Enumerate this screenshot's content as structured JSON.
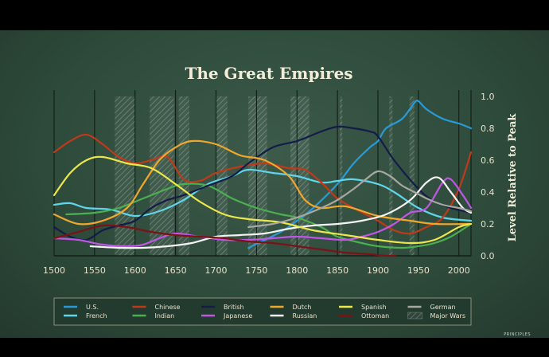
{
  "brand": "PRINCIPLES",
  "chart_data": {
    "type": "line",
    "title": "The Great Empires",
    "xlabel": "",
    "ylabel": "Level Relative to Peak",
    "xlim": [
      1500,
      2015
    ],
    "ylim": [
      0,
      1.0
    ],
    "x_ticks": [
      "1500",
      "1550",
      "1600",
      "1650",
      "1700",
      "1750",
      "1800",
      "1850",
      "1900",
      "1950",
      "2000"
    ],
    "y_ticks": [
      "0.0",
      "0.2",
      "0.4",
      "0.6",
      "0.8",
      "1.0"
    ],
    "grid": "vertical lines every 50 years",
    "legend_position": "bottom",
    "major_wars": [
      {
        "start": 1575,
        "end": 1600
      },
      {
        "start": 1618,
        "end": 1648
      },
      {
        "start": 1654,
        "end": 1667
      },
      {
        "start": 1700,
        "end": 1714
      },
      {
        "start": 1740,
        "end": 1763
      },
      {
        "start": 1792,
        "end": 1815
      },
      {
        "start": 1853,
        "end": 1856
      },
      {
        "start": 1914,
        "end": 1918
      },
      {
        "start": 1939,
        "end": 1945
      }
    ],
    "series": [
      {
        "name": "U.S.",
        "color": "#2a9ad6",
        "points": [
          [
            1740,
            0.05
          ],
          [
            1780,
            0.15
          ],
          [
            1800,
            0.22
          ],
          [
            1820,
            0.3
          ],
          [
            1850,
            0.45
          ],
          [
            1870,
            0.58
          ],
          [
            1890,
            0.68
          ],
          [
            1900,
            0.72
          ],
          [
            1910,
            0.8
          ],
          [
            1930,
            0.86
          ],
          [
            1945,
            0.96
          ],
          [
            1950,
            0.97
          ],
          [
            1960,
            0.92
          ],
          [
            1980,
            0.86
          ],
          [
            2000,
            0.83
          ],
          [
            2015,
            0.8
          ]
        ]
      },
      {
        "name": "French",
        "color": "#5fd6ea",
        "points": [
          [
            1500,
            0.32
          ],
          [
            1520,
            0.33
          ],
          [
            1540,
            0.3
          ],
          [
            1570,
            0.29
          ],
          [
            1600,
            0.25
          ],
          [
            1630,
            0.28
          ],
          [
            1660,
            0.35
          ],
          [
            1690,
            0.45
          ],
          [
            1720,
            0.5
          ],
          [
            1740,
            0.54
          ],
          [
            1770,
            0.52
          ],
          [
            1800,
            0.5
          ],
          [
            1830,
            0.46
          ],
          [
            1850,
            0.47
          ],
          [
            1870,
            0.48
          ],
          [
            1900,
            0.45
          ],
          [
            1920,
            0.4
          ],
          [
            1950,
            0.3
          ],
          [
            1980,
            0.24
          ],
          [
            2015,
            0.22
          ]
        ]
      },
      {
        "name": "Chinese",
        "color": "#c0391b",
        "points": [
          [
            1500,
            0.65
          ],
          [
            1520,
            0.72
          ],
          [
            1540,
            0.76
          ],
          [
            1560,
            0.7
          ],
          [
            1580,
            0.62
          ],
          [
            1600,
            0.58
          ],
          [
            1620,
            0.6
          ],
          [
            1640,
            0.62
          ],
          [
            1660,
            0.48
          ],
          [
            1680,
            0.47
          ],
          [
            1700,
            0.52
          ],
          [
            1730,
            0.56
          ],
          [
            1760,
            0.58
          ],
          [
            1790,
            0.55
          ],
          [
            1810,
            0.54
          ],
          [
            1830,
            0.46
          ],
          [
            1850,
            0.36
          ],
          [
            1870,
            0.3
          ],
          [
            1900,
            0.22
          ],
          [
            1920,
            0.16
          ],
          [
            1940,
            0.14
          ],
          [
            1960,
            0.18
          ],
          [
            1980,
            0.24
          ],
          [
            2000,
            0.42
          ],
          [
            2015,
            0.65
          ]
        ]
      },
      {
        "name": "Indian",
        "color": "#4caf50",
        "points": [
          [
            1515,
            0.26
          ],
          [
            1550,
            0.27
          ],
          [
            1580,
            0.3
          ],
          [
            1610,
            0.36
          ],
          [
            1640,
            0.42
          ],
          [
            1660,
            0.45
          ],
          [
            1690,
            0.44
          ],
          [
            1720,
            0.36
          ],
          [
            1750,
            0.3
          ],
          [
            1780,
            0.26
          ],
          [
            1800,
            0.24
          ],
          [
            1830,
            0.18
          ],
          [
            1850,
            0.12
          ],
          [
            1880,
            0.08
          ],
          [
            1900,
            0.06
          ],
          [
            1930,
            0.05
          ],
          [
            1950,
            0.06
          ],
          [
            1970,
            0.08
          ],
          [
            1990,
            0.12
          ],
          [
            2015,
            0.2
          ]
        ]
      },
      {
        "name": "British",
        "color": "#141c48",
        "points": [
          [
            1500,
            0.18
          ],
          [
            1520,
            0.12
          ],
          [
            1540,
            0.1
          ],
          [
            1560,
            0.16
          ],
          [
            1580,
            0.19
          ],
          [
            1600,
            0.22
          ],
          [
            1620,
            0.3
          ],
          [
            1640,
            0.35
          ],
          [
            1660,
            0.38
          ],
          [
            1690,
            0.44
          ],
          [
            1720,
            0.5
          ],
          [
            1740,
            0.58
          ],
          [
            1770,
            0.68
          ],
          [
            1800,
            0.72
          ],
          [
            1830,
            0.78
          ],
          [
            1850,
            0.81
          ],
          [
            1870,
            0.8
          ],
          [
            1890,
            0.78
          ],
          [
            1900,
            0.75
          ],
          [
            1920,
            0.6
          ],
          [
            1950,
            0.42
          ],
          [
            1970,
            0.34
          ],
          [
            1990,
            0.3
          ],
          [
            2015,
            0.27
          ]
        ]
      },
      {
        "name": "Japanese",
        "color": "#c156e6",
        "points": [
          [
            1500,
            0.11
          ],
          [
            1530,
            0.1
          ],
          [
            1560,
            0.07
          ],
          [
            1590,
            0.06
          ],
          [
            1610,
            0.07
          ],
          [
            1630,
            0.11
          ],
          [
            1650,
            0.14
          ],
          [
            1680,
            0.12
          ],
          [
            1710,
            0.1
          ],
          [
            1740,
            0.1
          ],
          [
            1770,
            0.11
          ],
          [
            1800,
            0.12
          ],
          [
            1830,
            0.11
          ],
          [
            1860,
            0.1
          ],
          [
            1880,
            0.12
          ],
          [
            1900,
            0.15
          ],
          [
            1920,
            0.2
          ],
          [
            1940,
            0.27
          ],
          [
            1960,
            0.3
          ],
          [
            1980,
            0.46
          ],
          [
            1990,
            0.48
          ],
          [
            2005,
            0.38
          ],
          [
            2015,
            0.3
          ]
        ]
      },
      {
        "name": "Dutch",
        "color": "#f1a72c",
        "points": [
          [
            1500,
            0.26
          ],
          [
            1530,
            0.2
          ],
          [
            1560,
            0.22
          ],
          [
            1590,
            0.3
          ],
          [
            1610,
            0.45
          ],
          [
            1630,
            0.6
          ],
          [
            1650,
            0.68
          ],
          [
            1670,
            0.72
          ],
          [
            1700,
            0.7
          ],
          [
            1730,
            0.63
          ],
          [
            1760,
            0.6
          ],
          [
            1790,
            0.5
          ],
          [
            1810,
            0.35
          ],
          [
            1830,
            0.3
          ],
          [
            1860,
            0.31
          ],
          [
            1900,
            0.25
          ],
          [
            1940,
            0.22
          ],
          [
            1970,
            0.2
          ],
          [
            2015,
            0.2
          ]
        ]
      },
      {
        "name": "Russian",
        "color": "#f4f4f4",
        "points": [
          [
            1545,
            0.06
          ],
          [
            1580,
            0.05
          ],
          [
            1610,
            0.05
          ],
          [
            1640,
            0.06
          ],
          [
            1670,
            0.08
          ],
          [
            1700,
            0.12
          ],
          [
            1730,
            0.13
          ],
          [
            1760,
            0.14
          ],
          [
            1790,
            0.17
          ],
          [
            1820,
            0.19
          ],
          [
            1850,
            0.2
          ],
          [
            1880,
            0.22
          ],
          [
            1910,
            0.26
          ],
          [
            1940,
            0.35
          ],
          [
            1960,
            0.46
          ],
          [
            1975,
            0.49
          ],
          [
            1990,
            0.4
          ],
          [
            2005,
            0.3
          ],
          [
            2015,
            0.27
          ]
        ]
      },
      {
        "name": "Spanish",
        "color": "#ece74a",
        "points": [
          [
            1500,
            0.38
          ],
          [
            1520,
            0.52
          ],
          [
            1540,
            0.6
          ],
          [
            1560,
            0.62
          ],
          [
            1590,
            0.58
          ],
          [
            1620,
            0.55
          ],
          [
            1650,
            0.45
          ],
          [
            1680,
            0.34
          ],
          [
            1710,
            0.26
          ],
          [
            1740,
            0.23
          ],
          [
            1780,
            0.21
          ],
          [
            1820,
            0.16
          ],
          [
            1860,
            0.13
          ],
          [
            1900,
            0.1
          ],
          [
            1940,
            0.08
          ],
          [
            1970,
            0.1
          ],
          [
            2000,
            0.18
          ],
          [
            2015,
            0.2
          ]
        ]
      },
      {
        "name": "Ottoman",
        "color": "#7a1316",
        "points": [
          [
            1500,
            0.11
          ],
          [
            1530,
            0.15
          ],
          [
            1560,
            0.19
          ],
          [
            1590,
            0.18
          ],
          [
            1620,
            0.15
          ],
          [
            1650,
            0.13
          ],
          [
            1680,
            0.12
          ],
          [
            1710,
            0.11
          ],
          [
            1740,
            0.09
          ],
          [
            1770,
            0.08
          ],
          [
            1800,
            0.06
          ],
          [
            1830,
            0.04
          ],
          [
            1860,
            0.02
          ],
          [
            1890,
            0.01
          ],
          [
            1910,
            0.0
          ],
          [
            1922,
            0.0
          ]
        ]
      },
      {
        "name": "German",
        "color": "#a8a8a0",
        "points": [
          [
            1740,
            0.18
          ],
          [
            1770,
            0.2
          ],
          [
            1800,
            0.24
          ],
          [
            1830,
            0.3
          ],
          [
            1850,
            0.35
          ],
          [
            1870,
            0.42
          ],
          [
            1885,
            0.48
          ],
          [
            1900,
            0.53
          ],
          [
            1915,
            0.5
          ],
          [
            1930,
            0.44
          ],
          [
            1945,
            0.4
          ],
          [
            1960,
            0.36
          ],
          [
            1980,
            0.32
          ],
          [
            2000,
            0.3
          ],
          [
            2015,
            0.28
          ]
        ]
      }
    ]
  }
}
